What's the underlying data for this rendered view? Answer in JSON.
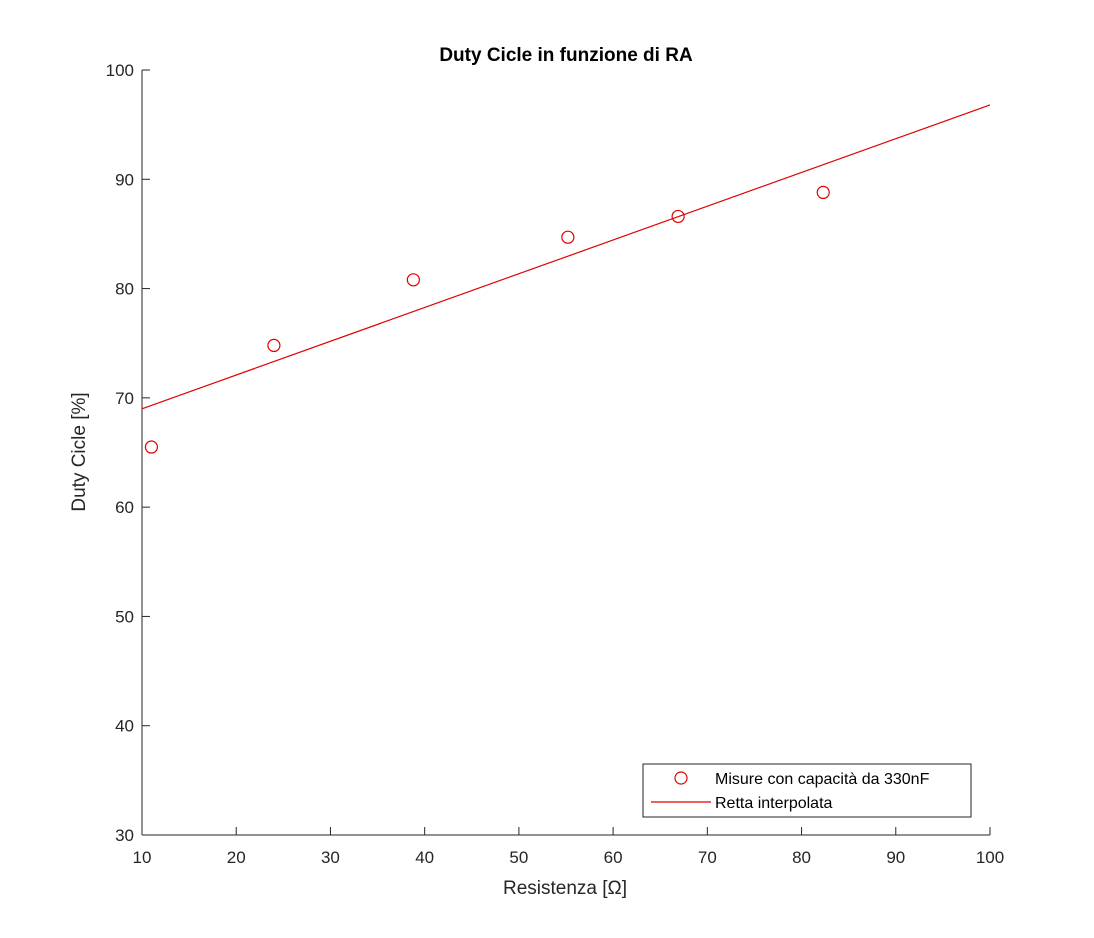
{
  "chart_data": {
    "type": "scatter",
    "title": "Duty Cicle in funzione di RA",
    "xlabel": "Resistenza [Ω]",
    "ylabel": "Duty Cicle [%]",
    "xlim": [
      10,
      100
    ],
    "ylim": [
      30,
      100
    ],
    "xticks": [
      10,
      20,
      30,
      40,
      50,
      60,
      70,
      80,
      90,
      100
    ],
    "yticks": [
      30,
      40,
      50,
      60,
      70,
      80,
      90,
      100
    ],
    "grid": false,
    "legend_position": "bottom-right",
    "series": [
      {
        "name": "Misure con capacità da 330nF",
        "kind": "markers",
        "marker": "circle",
        "color": "#e00000",
        "x": [
          11.0,
          24.0,
          38.8,
          55.2,
          66.9,
          82.3
        ],
        "y": [
          65.5,
          74.8,
          80.8,
          84.7,
          86.6,
          88.8
        ]
      },
      {
        "name": "Retta interpolata",
        "kind": "line",
        "color": "#e00000",
        "x": [
          10,
          100
        ],
        "y": [
          69.0,
          96.8
        ]
      }
    ]
  }
}
